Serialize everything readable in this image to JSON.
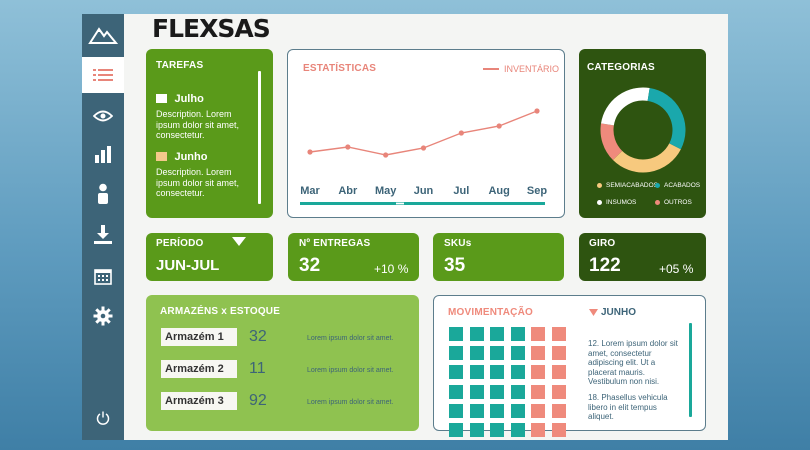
{
  "brand": {
    "name": "FLEXSAS"
  },
  "sidebar": {
    "items": [
      {
        "icon": "mountain-logo-icon"
      },
      {
        "icon": "list-icon",
        "active": true
      },
      {
        "icon": "eye-icon"
      },
      {
        "icon": "bar-chart-icon"
      },
      {
        "icon": "person-icon"
      },
      {
        "icon": "download-icon"
      },
      {
        "icon": "calendar-icon"
      },
      {
        "icon": "gear-icon"
      },
      {
        "icon": "power-icon"
      }
    ]
  },
  "tarefas": {
    "title": "TAREFAS",
    "items": [
      {
        "label": "Julho",
        "color": "#ffffff",
        "desc": "Description. Lorem ipsum dolor sit amet, consectetur."
      },
      {
        "label": "Junho",
        "color": "#f3c98a",
        "desc": "Description. Lorem ipsum dolor sit amet, consectetur."
      }
    ]
  },
  "estatisticas": {
    "title": "ESTATÍSTICAS",
    "legend": "INVENTÁRIO",
    "color": "#e8857a"
  },
  "chart_data": {
    "type": "line",
    "categories": [
      "Mar",
      "Abr",
      "May",
      "Jun",
      "Jul",
      "Aug",
      "Sep"
    ],
    "series": [
      {
        "name": "INVENTÁRIO",
        "values": [
          30,
          35,
          27,
          34,
          49,
          56,
          71
        ]
      }
    ],
    "ylim": [
      0,
      100
    ]
  },
  "categorias": {
    "title": "CATEGORIAS",
    "legend": [
      {
        "label": "SEMIACABADOS",
        "color": "#f7c97e"
      },
      {
        "label": "ACABADOS",
        "color": "#1aa8ac"
      },
      {
        "label": "INSUMOS",
        "color": "#ffffff"
      },
      {
        "label": "OUTROS",
        "color": "#ef8a7c"
      }
    ],
    "donut": [
      {
        "label": "SEMIACABADOS",
        "value": 30,
        "color": "#f7c97e"
      },
      {
        "label": "OUTROS",
        "value": 15,
        "color": "#ef8a7c"
      },
      {
        "label": "INSUMOS",
        "value": 25,
        "color": "#ffffff"
      },
      {
        "label": "ACABADOS",
        "value": 30,
        "color": "#1aa8ac"
      }
    ]
  },
  "periodo": {
    "title": "PERÍODO",
    "value": "JUN-JUL"
  },
  "entregas": {
    "title": "Nº ENTREGAS",
    "value": "32",
    "pct": "+10 %"
  },
  "skus": {
    "title": "SKUs",
    "value": "35"
  },
  "giro": {
    "title": "GIRO",
    "value": "122",
    "pct": "+05 %"
  },
  "armazens": {
    "title": "ARMAZÉNS x ESTOQUE",
    "rows": [
      {
        "label": "Armazém 1",
        "value": "32",
        "note": "Lorem ipsum dolor sit amet."
      },
      {
        "label": "Armazém 2",
        "value": "11",
        "note": "Lorem ipsum dolor sit amet."
      },
      {
        "label": "Armazém 3",
        "value": "92",
        "note": "Lorem ipsum dolor sit amet."
      }
    ]
  },
  "movimentacao": {
    "title": "MOVIMENTAÇÃO",
    "month": "JUNHO",
    "teal": "#1aa89a",
    "salmon": "#ef8a7c",
    "teal_columns": 4,
    "salmon_columns": 2,
    "notes": [
      "12. Lorem ipsum dolor sit amet, consectetur adipiscing elit. Ut a placerat mauris. Vestibulum non nisi.",
      "18. Phasellus vehicula libero in elit tempus aliquet."
    ]
  }
}
